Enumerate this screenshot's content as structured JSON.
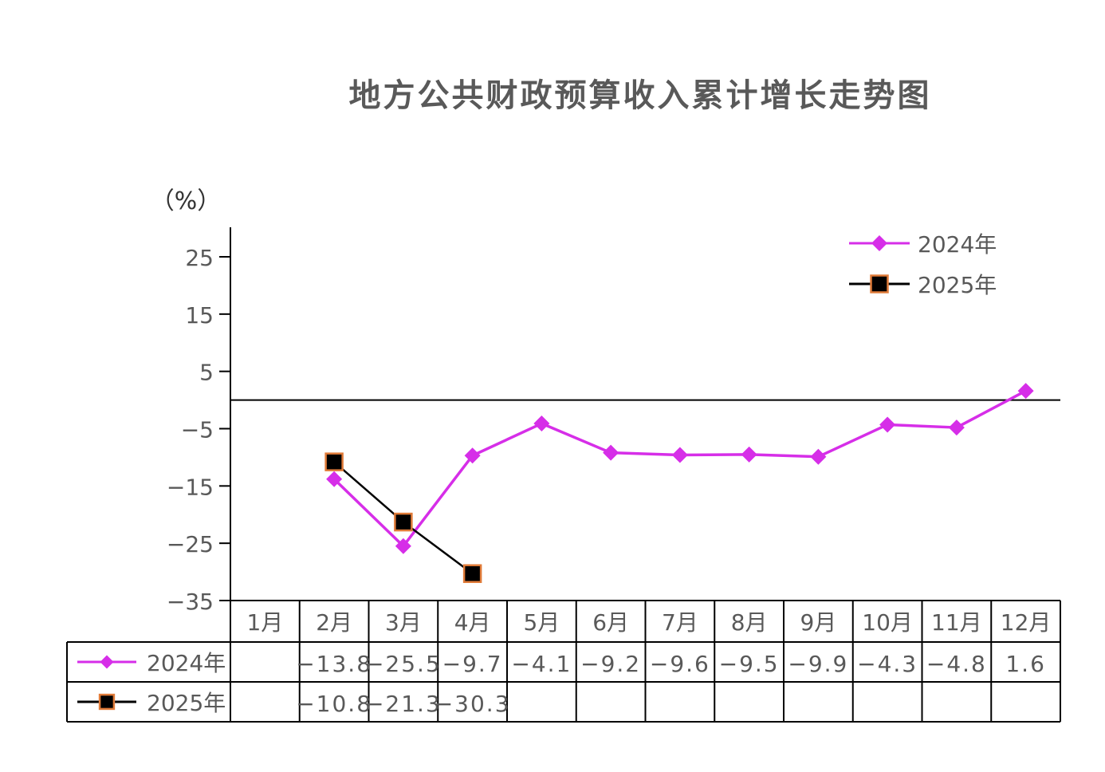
{
  "chart_data": {
    "type": "line",
    "title": "地方公共财政预算收入累计增长走势图",
    "unit_label": "（%）",
    "categories": [
      "1月",
      "2月",
      "3月",
      "4月",
      "5月",
      "6月",
      "7月",
      "8月",
      "9月",
      "10月",
      "11月",
      "12月"
    ],
    "y_ticks": [
      25,
      15,
      5,
      -5,
      -15,
      -25,
      -35
    ],
    "y_tick_labels": [
      "25",
      "15",
      "5",
      "−5",
      "−15",
      "−25",
      "−35"
    ],
    "ylim": [
      -35,
      30
    ],
    "grid": false,
    "legend_position": "top-right",
    "series": [
      {
        "name": "2024年",
        "color": "#d62ee8",
        "marker": "diamond",
        "values": [
          null,
          -13.8,
          -25.5,
          -9.7,
          -4.1,
          -9.2,
          -9.6,
          -9.5,
          -9.9,
          -4.3,
          -4.8,
          1.6
        ],
        "table_labels": [
          "",
          "−13.8",
          "−25.5",
          "−9.7",
          "−4.1",
          "−9.2",
          "−9.6",
          "−9.5",
          "−9.9",
          "−4.3",
          "−4.8",
          "1.6"
        ]
      },
      {
        "name": "2025年",
        "color": "#000000",
        "marker": "square",
        "marker_edge": "#e07b39",
        "values": [
          null,
          -10.8,
          -21.3,
          -30.3,
          null,
          null,
          null,
          null,
          null,
          null,
          null,
          null
        ],
        "table_labels": [
          "",
          "−10.8",
          "−21.3",
          "−30.3",
          "",
          "",
          "",
          "",
          "",
          "",
          "",
          ""
        ]
      }
    ]
  }
}
